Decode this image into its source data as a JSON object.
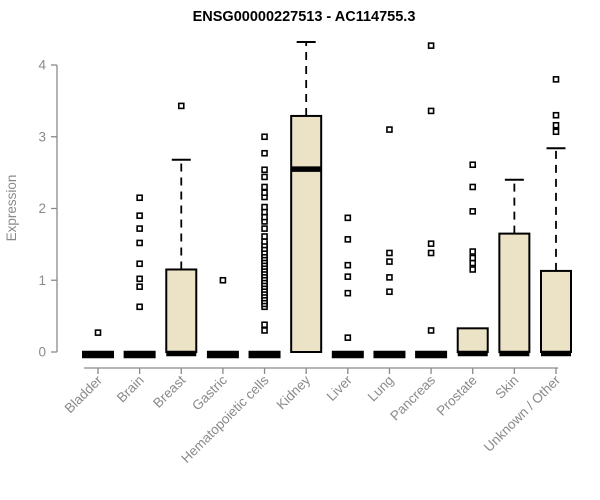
{
  "chart_data": {
    "type": "boxplot",
    "title": "ENSG00000227513 - AC114755.3",
    "ylabel": "Expression",
    "xlabel": "",
    "ylim": [
      0,
      4.35
    ],
    "yticks": [
      0,
      1,
      2,
      3,
      4
    ],
    "grid": false,
    "legend": null,
    "categories": [
      "Bladder",
      "Brain",
      "Breast",
      "Gastric",
      "Hematopoietic cells",
      "Kidney",
      "Liver",
      "Lung",
      "Pancreas",
      "Prostate",
      "Skin",
      "Unknown / Other"
    ],
    "series": [
      {
        "category": "Bladder",
        "q1": 0,
        "median": 0,
        "q3": 0,
        "whisker_low": 0,
        "whisker_high": 0,
        "outliers": [
          0.27
        ]
      },
      {
        "category": "Brain",
        "q1": 0,
        "median": 0,
        "q3": 0,
        "whisker_low": 0,
        "whisker_high": 0,
        "outliers": [
          0.63,
          0.91,
          1.02,
          1.23,
          1.52,
          1.72,
          1.9,
          2.15
        ]
      },
      {
        "category": "Breast",
        "q1": 0,
        "median": 0,
        "q3": 1.15,
        "whisker_low": 0,
        "whisker_high": 2.68,
        "outliers": [
          3.43
        ]
      },
      {
        "category": "Gastric",
        "q1": 0,
        "median": 0,
        "q3": 0,
        "whisker_low": 0,
        "whisker_high": 0,
        "outliers": [
          1.0
        ]
      },
      {
        "category": "Hematopoietic cells",
        "q1": 0,
        "median": 0,
        "q3": 0,
        "whisker_low": 0,
        "whisker_high": 0,
        "outliers": [
          0.3,
          0.38,
          0.63,
          0.67,
          0.71,
          0.75,
          0.79,
          0.83,
          0.87,
          0.91,
          0.95,
          0.99,
          1.03,
          1.07,
          1.11,
          1.15,
          1.19,
          1.23,
          1.27,
          1.31,
          1.35,
          1.39,
          1.44,
          1.49,
          1.54,
          1.61,
          1.72,
          1.82,
          1.88,
          1.95,
          2.02,
          2.16,
          2.22,
          2.3,
          2.44,
          2.54,
          2.77,
          3.0
        ]
      },
      {
        "category": "Kidney",
        "q1": 0,
        "median": 2.57,
        "q3": 3.29,
        "whisker_low": 0,
        "whisker_high": 4.32,
        "outliers": []
      },
      {
        "category": "Liver",
        "q1": 0,
        "median": 0,
        "q3": 0,
        "whisker_low": 0,
        "whisker_high": 0,
        "outliers": [
          0.2,
          0.82,
          1.05,
          1.21,
          1.57,
          1.87
        ]
      },
      {
        "category": "Lung",
        "q1": 0,
        "median": 0,
        "q3": 0,
        "whisker_low": 0,
        "whisker_high": 0,
        "outliers": [
          0.84,
          1.04,
          1.26,
          1.38,
          3.1
        ]
      },
      {
        "category": "Pancreas",
        "q1": 0,
        "median": 0,
        "q3": 0,
        "whisker_low": 0,
        "whisker_high": 0,
        "outliers": [
          0.3,
          1.38,
          1.51,
          3.36,
          4.27
        ]
      },
      {
        "category": "Prostate",
        "q1": 0,
        "median": 0,
        "q3": 0.33,
        "whisker_low": 0,
        "whisker_high": 0.33,
        "outliers": [
          1.15,
          1.24,
          1.31,
          1.4,
          1.96,
          2.3,
          2.61
        ]
      },
      {
        "category": "Skin",
        "q1": 0,
        "median": 0,
        "q3": 1.65,
        "whisker_low": 0,
        "whisker_high": 2.4,
        "outliers": []
      },
      {
        "category": "Unknown / Other",
        "q1": 0,
        "median": 0,
        "q3": 1.13,
        "whisker_low": 0,
        "whisker_high": 2.84,
        "outliers": [
          3.07,
          3.16,
          3.3,
          3.8
        ]
      }
    ],
    "colors": {
      "background": "#ffffff",
      "box_fill": "#ece3c6",
      "box_border": "#000000",
      "median": "#000000",
      "whisker": "#000000",
      "outlier_fill": "#ffffff",
      "outlier_border": "#000000",
      "axis": "#8a8a8a",
      "tick_text": "#8a8a8a",
      "title_text": "#000000"
    }
  }
}
